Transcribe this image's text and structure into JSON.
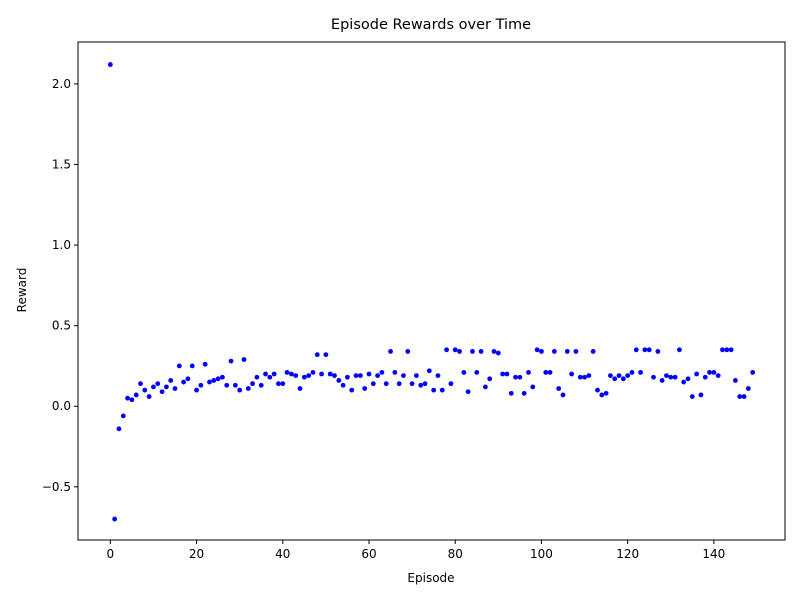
{
  "chart_data": {
    "type": "scatter",
    "title": "Episode Rewards over Time",
    "xlabel": "Episode",
    "ylabel": "Reward",
    "xlim": [
      -7.5,
      156.5
    ],
    "ylim": [
      -0.83,
      2.26
    ],
    "xticks": [
      0,
      20,
      40,
      60,
      80,
      100,
      120,
      140
    ],
    "yticks": [
      -0.5,
      0.0,
      0.5,
      1.0,
      1.5,
      2.0
    ],
    "ytick_labels": [
      "−0.5",
      "0.0",
      "0.5",
      "1.0",
      "1.5",
      "2.0"
    ],
    "grid": false,
    "marker_color": "#0000ff",
    "series": [
      {
        "x": [
          0,
          1,
          2,
          3,
          4,
          5,
          6,
          7,
          8,
          9,
          10,
          11,
          12,
          13,
          14,
          15,
          16,
          17,
          18,
          19,
          20,
          21,
          22,
          23,
          24,
          25,
          26,
          27,
          28,
          29,
          30,
          31,
          32,
          33,
          34,
          35,
          36,
          37,
          38,
          39,
          40,
          41,
          42,
          43,
          44,
          45,
          46,
          47,
          48,
          49,
          50,
          51,
          52,
          53,
          54,
          55,
          56,
          57,
          58,
          59,
          60,
          61,
          62,
          63,
          64,
          65,
          66,
          67,
          68,
          69,
          70,
          71,
          72,
          73,
          74,
          75,
          76,
          77,
          78,
          79,
          80,
          81,
          82,
          83,
          84,
          85,
          86,
          87,
          88,
          89,
          90,
          91,
          92,
          93,
          94,
          95,
          96,
          97,
          98,
          99,
          100,
          101,
          102,
          103,
          104,
          105,
          106,
          107,
          108,
          109,
          110,
          111,
          112,
          113,
          114,
          115,
          116,
          117,
          118,
          119,
          120,
          121,
          122,
          123,
          124,
          125,
          126,
          127,
          128,
          129,
          130,
          131,
          132,
          133,
          134,
          135,
          136,
          137,
          138,
          139,
          140,
          141,
          142,
          143,
          144,
          145,
          146,
          147,
          148,
          149
        ],
        "y": [
          2.12,
          -0.7,
          -0.14,
          -0.06,
          0.05,
          0.04,
          0.07,
          0.14,
          0.1,
          0.06,
          0.12,
          0.14,
          0.09,
          0.12,
          0.16,
          0.11,
          0.25,
          0.15,
          0.17,
          0.25,
          0.1,
          0.13,
          0.26,
          0.15,
          0.16,
          0.17,
          0.18,
          0.13,
          0.28,
          0.13,
          0.1,
          0.29,
          0.11,
          0.14,
          0.18,
          0.13,
          0.2,
          0.18,
          0.2,
          0.14,
          0.14,
          0.21,
          0.2,
          0.19,
          0.11,
          0.18,
          0.19,
          0.21,
          0.32,
          0.2,
          0.32,
          0.2,
          0.19,
          0.16,
          0.13,
          0.18,
          0.1,
          0.19,
          0.19,
          0.11,
          0.2,
          0.14,
          0.19,
          0.21,
          0.14,
          0.34,
          0.21,
          0.14,
          0.19,
          0.34,
          0.14,
          0.19,
          0.13,
          0.14,
          0.22,
          0.1,
          0.19,
          0.1,
          0.35,
          0.14,
          0.35,
          0.34,
          0.21,
          0.09,
          0.34,
          0.21,
          0.34,
          0.12,
          0.17,
          0.34,
          0.33,
          0.2,
          0.2,
          0.08,
          0.18,
          0.18,
          0.08,
          0.21,
          0.12,
          0.35,
          0.34,
          0.21,
          0.21,
          0.34,
          0.11,
          0.07,
          0.34,
          0.2,
          0.34,
          0.18,
          0.18,
          0.19,
          0.34,
          0.1,
          0.07,
          0.08,
          0.19,
          0.17,
          0.19,
          0.17,
          0.19,
          0.21,
          0.35,
          0.21,
          0.35,
          0.35,
          0.18,
          0.34,
          0.16,
          0.19,
          0.18,
          0.18,
          0.35,
          0.15,
          0.17,
          0.06,
          0.2,
          0.07,
          0.18,
          0.21,
          0.21,
          0.19,
          0.35,
          0.35,
          0.35,
          0.16,
          0.06,
          0.06,
          0.11,
          0.21
        ]
      }
    ]
  }
}
